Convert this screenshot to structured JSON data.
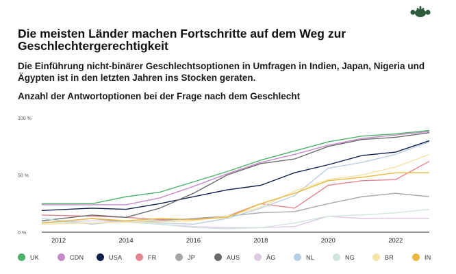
{
  "header": {
    "title": "Die meisten Länder machen Fortschritte auf dem Weg zur Geschlechtergerechtigkeit",
    "subtitle": "Die Einführung nicht-binärer Geschlechtsoptionen in Umfragen in Indien, Japan, Nigeria und Ägypten ist in den letzten Jahren ins Stocken geraten.",
    "chart_heading": "Anzahl der Antwortoptionen bei der Frage nach dem Geschlecht",
    "logo_icon": "surveymonkey-logo-icon",
    "logo_color": "#2e5b3e"
  },
  "chart_data": {
    "type": "line",
    "title": "Anzahl der Antwortoptionen bei der Frage nach dem Geschlecht",
    "xlabel": "",
    "ylabel": "",
    "x": [
      2011.5,
      2013,
      2014,
      2015,
      2016,
      2017,
      2018,
      2019,
      2020,
      2021,
      2022,
      2023
    ],
    "xlim": [
      2011.5,
      2023
    ],
    "ylim": [
      0,
      100
    ],
    "x_ticks": [
      "2012",
      "2014",
      "2016",
      "2018",
      "2020",
      "2022"
    ],
    "x_tick_values": [
      2012,
      2014,
      2016,
      2018,
      2020,
      2022
    ],
    "y_ticks": [
      "0 %",
      "50 %",
      "100 %"
    ],
    "y_tick_values": [
      0,
      50,
      100
    ],
    "grid": false,
    "series": [
      {
        "name": "UK",
        "color": "#4cb26a",
        "values": [
          25,
          25,
          31,
          35,
          44,
          53,
          63,
          71,
          79,
          84,
          86,
          89
        ]
      },
      {
        "name": "CDN",
        "color": "#c48ac8",
        "values": [
          24,
          24,
          24,
          30,
          40,
          51,
          61,
          68,
          76,
          82,
          85,
          88
        ]
      },
      {
        "name": "USA",
        "color": "#0e1f4d",
        "values": [
          19,
          21,
          20,
          25,
          31,
          37,
          41,
          52,
          59,
          67,
          70,
          80
        ]
      },
      {
        "name": "FR",
        "color": "#e3868f",
        "values": [
          15,
          14,
          13,
          11,
          11,
          14,
          25,
          21,
          41,
          45,
          46,
          62
        ]
      },
      {
        "name": "JP",
        "color": "#a6a6a6",
        "values": [
          8,
          12,
          9,
          10,
          12,
          14,
          17,
          18,
          25,
          31,
          34,
          31
        ]
      },
      {
        "name": "AUS",
        "color": "#6a6a6a",
        "values": [
          10,
          15,
          13,
          21,
          34,
          50,
          60,
          64,
          75,
          81,
          83,
          87
        ]
      },
      {
        "name": "ÄG",
        "color": "#ddcbe3",
        "values": [
          8,
          10,
          9,
          7,
          5,
          4,
          4,
          5,
          14,
          12,
          12,
          12
        ]
      },
      {
        "name": "NL",
        "color": "#b9cfe6",
        "values": [
          12,
          7,
          10,
          8,
          7,
          12,
          21,
          32,
          56,
          61,
          68,
          79
        ]
      },
      {
        "name": "NG",
        "color": "#cfe6dc",
        "values": [
          9,
          8,
          9,
          7,
          4,
          3,
          4,
          8,
          14,
          15,
          17,
          20
        ]
      },
      {
        "name": "BR",
        "color": "#f4e3a6",
        "values": [
          7,
          8,
          9,
          9,
          10,
          14,
          22,
          36,
          46,
          50,
          57,
          68
        ]
      },
      {
        "name": "IN",
        "color": "#e9b83e",
        "values": [
          8,
          12,
          10,
          12,
          11,
          13,
          25,
          34,
          45,
          48,
          52,
          52
        ]
      }
    ]
  }
}
